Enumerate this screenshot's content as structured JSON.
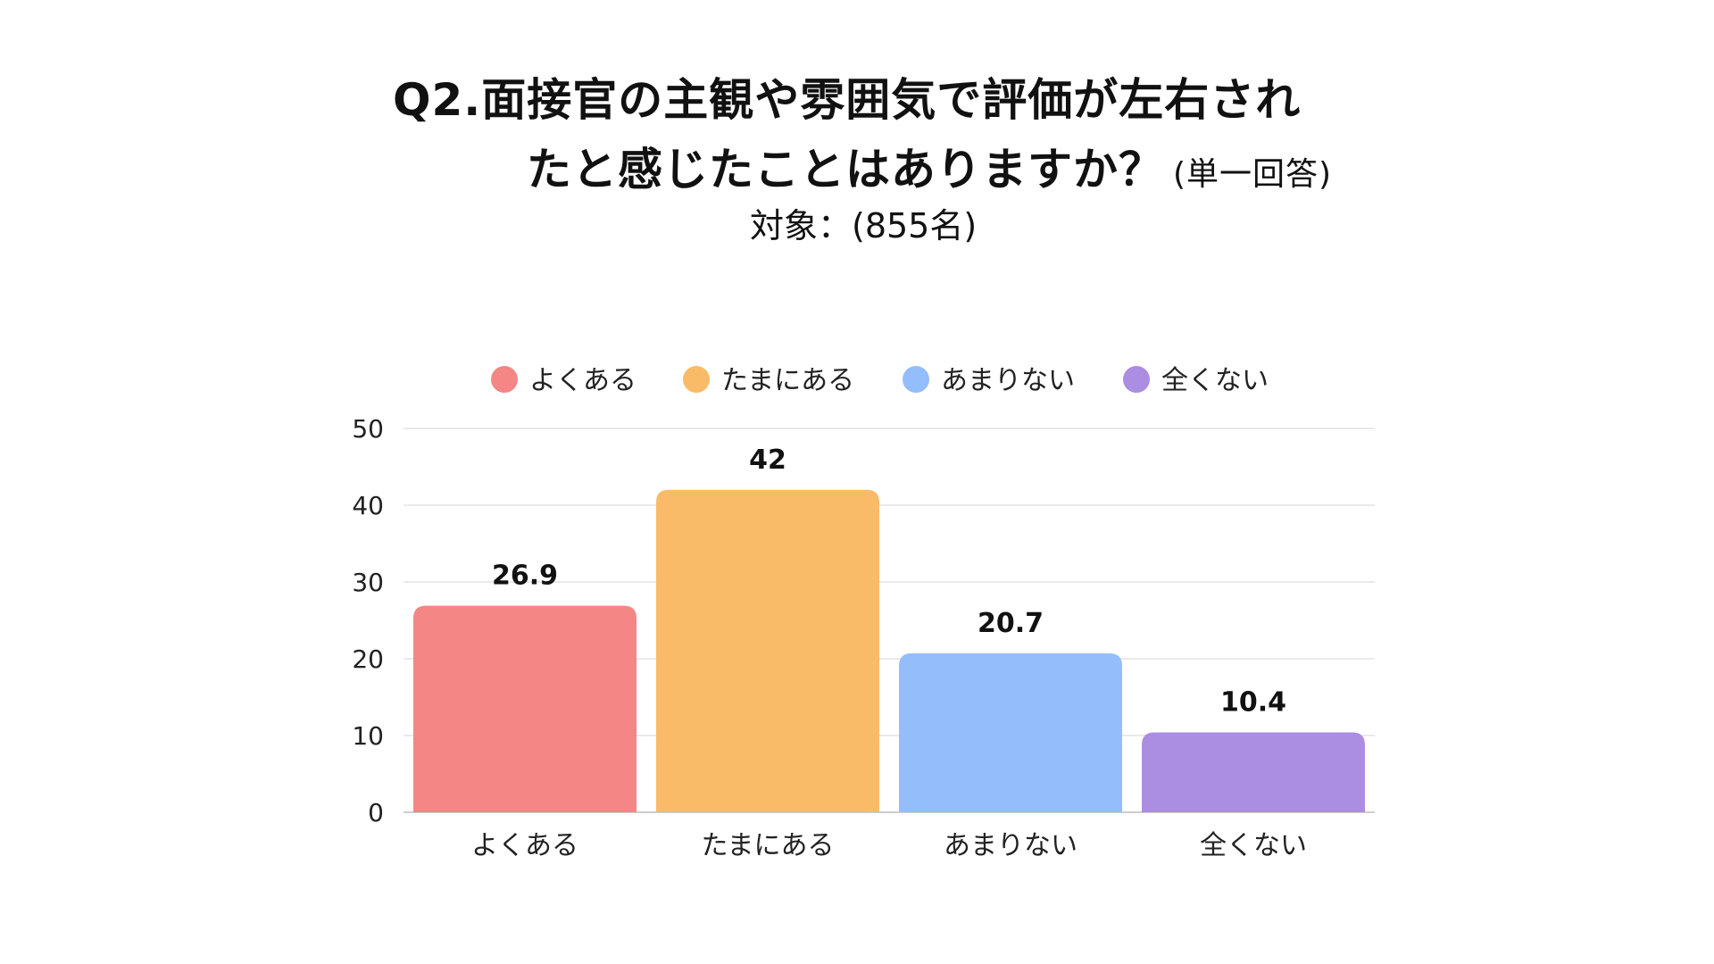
{
  "header": {
    "title_line1": "Q2.面接官の主観や雰囲気で評価が左右され",
    "title_line2": "たと感じたことはありますか？",
    "title_note": "(単一回答)",
    "subtitle": "対象：(855名)"
  },
  "chart_data": {
    "type": "bar",
    "categories": [
      "よくある",
      "たまにある",
      "あまりない",
      "全くない"
    ],
    "values": [
      26.9,
      42,
      20.7,
      10.4
    ],
    "value_labels": [
      "26.9",
      "42",
      "20.7",
      "10.4"
    ],
    "colors": [
      "#f48686",
      "#fabb68",
      "#93befb",
      "#ab8de2"
    ],
    "legend": [
      "よくある",
      "たまにある",
      "あまりない",
      "全くない"
    ],
    "legend_position": "top-center",
    "ylim": [
      0,
      50
    ],
    "yticks": [
      "0",
      "10",
      "20",
      "30",
      "40",
      "50"
    ],
    "grid": true,
    "title": "Q2.面接官の主観や雰囲気で評価が左右されたと感じたことはありますか？",
    "xlabel": "",
    "ylabel": ""
  }
}
